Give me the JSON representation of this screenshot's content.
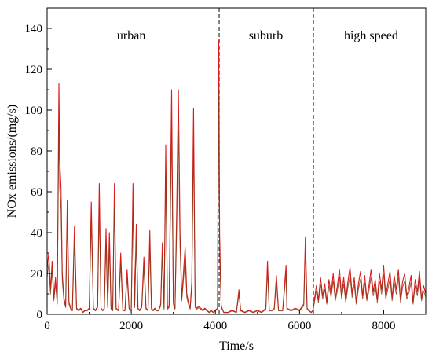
{
  "chart_data": {
    "type": "line",
    "xlabel": "Time/s",
    "ylabel": "NOx emissions/(mg/s)",
    "xlim": [
      0,
      9000
    ],
    "ylim": [
      0,
      150
    ],
    "xticks": [
      0,
      2000,
      4000,
      6000,
      8000
    ],
    "yticks": [
      0,
      20,
      40,
      60,
      80,
      100,
      120,
      140
    ],
    "grid": false,
    "legend": "none",
    "colors": {
      "series_primary": "#d81c1c",
      "series_secondary": "#8b3a1a",
      "divider": "#333333"
    },
    "dividers": [
      4090,
      6330
    ],
    "regions": [
      {
        "label": "urban",
        "x": 2000
      },
      {
        "label": "suburb",
        "x": 5200
      },
      {
        "label": "high speed",
        "x": 7700
      }
    ],
    "series": [
      {
        "points": [
          [
            0,
            22
          ],
          [
            40,
            30
          ],
          [
            80,
            12
          ],
          [
            120,
            26
          ],
          [
            160,
            8
          ],
          [
            200,
            18
          ],
          [
            240,
            6
          ],
          [
            280,
            113
          ],
          [
            300,
            75
          ],
          [
            330,
            62
          ],
          [
            360,
            20
          ],
          [
            400,
            8
          ],
          [
            440,
            4
          ],
          [
            480,
            56
          ],
          [
            520,
            6
          ],
          [
            560,
            3
          ],
          [
            600,
            2
          ],
          [
            650,
            43
          ],
          [
            700,
            3
          ],
          [
            750,
            2
          ],
          [
            800,
            3
          ],
          [
            850,
            1
          ],
          [
            900,
            2
          ],
          [
            950,
            2
          ],
          [
            1000,
            3
          ],
          [
            1050,
            55
          ],
          [
            1100,
            3
          ],
          [
            1150,
            2
          ],
          [
            1200,
            4
          ],
          [
            1240,
            64
          ],
          [
            1280,
            3
          ],
          [
            1320,
            2
          ],
          [
            1360,
            3
          ],
          [
            1400,
            42
          ],
          [
            1440,
            4
          ],
          [
            1480,
            40
          ],
          [
            1520,
            3
          ],
          [
            1560,
            2
          ],
          [
            1600,
            64
          ],
          [
            1640,
            3
          ],
          [
            1700,
            2
          ],
          [
            1750,
            30
          ],
          [
            1800,
            2
          ],
          [
            1850,
            2
          ],
          [
            1900,
            22
          ],
          [
            1950,
            3
          ],
          [
            2000,
            2
          ],
          [
            2040,
            64
          ],
          [
            2080,
            4
          ],
          [
            2120,
            44
          ],
          [
            2160,
            3
          ],
          [
            2200,
            2
          ],
          [
            2250,
            4
          ],
          [
            2300,
            28
          ],
          [
            2350,
            3
          ],
          [
            2400,
            2
          ],
          [
            2440,
            41
          ],
          [
            2480,
            3
          ],
          [
            2520,
            2
          ],
          [
            2560,
            3
          ],
          [
            2600,
            2
          ],
          [
            2650,
            2
          ],
          [
            2700,
            5
          ],
          [
            2740,
            35
          ],
          [
            2780,
            3
          ],
          [
            2820,
            83
          ],
          [
            2860,
            3
          ],
          [
            2900,
            4
          ],
          [
            2960,
            110
          ],
          [
            3000,
            6
          ],
          [
            3040,
            3
          ],
          [
            3080,
            52
          ],
          [
            3120,
            110
          ],
          [
            3160,
            40
          ],
          [
            3200,
            8
          ],
          [
            3240,
            20
          ],
          [
            3280,
            33
          ],
          [
            3320,
            10
          ],
          [
            3360,
            6
          ],
          [
            3400,
            3
          ],
          [
            3440,
            16
          ],
          [
            3480,
            101
          ],
          [
            3520,
            4
          ],
          [
            3560,
            3
          ],
          [
            3600,
            4
          ],
          [
            3650,
            3
          ],
          [
            3700,
            2
          ],
          [
            3750,
            3
          ],
          [
            3800,
            2
          ],
          [
            3850,
            1
          ],
          [
            3900,
            2
          ],
          [
            3950,
            1
          ],
          [
            4000,
            2
          ],
          [
            4050,
            3
          ],
          [
            4080,
            134
          ],
          [
            4100,
            40
          ],
          [
            4120,
            20
          ],
          [
            4140,
            4
          ],
          [
            4200,
            1
          ],
          [
            4300,
            1
          ],
          [
            4400,
            2
          ],
          [
            4500,
            1
          ],
          [
            4560,
            12
          ],
          [
            4600,
            2
          ],
          [
            4700,
            1
          ],
          [
            4800,
            2
          ],
          [
            4900,
            1
          ],
          [
            5000,
            2
          ],
          [
            5100,
            1
          ],
          [
            5200,
            3
          ],
          [
            5240,
            26
          ],
          [
            5280,
            2
          ],
          [
            5350,
            2
          ],
          [
            5400,
            3
          ],
          [
            5450,
            19
          ],
          [
            5500,
            2
          ],
          [
            5600,
            2
          ],
          [
            5680,
            24
          ],
          [
            5700,
            3
          ],
          [
            5800,
            2
          ],
          [
            5900,
            3
          ],
          [
            6000,
            2
          ],
          [
            6100,
            5
          ],
          [
            6140,
            38
          ],
          [
            6180,
            3
          ],
          [
            6220,
            2
          ],
          [
            6280,
            1
          ],
          [
            6320,
            2
          ],
          [
            6360,
            8
          ],
          [
            6400,
            14
          ],
          [
            6450,
            7
          ],
          [
            6500,
            18
          ],
          [
            6550,
            9
          ],
          [
            6600,
            15
          ],
          [
            6650,
            6
          ],
          [
            6700,
            17
          ],
          [
            6750,
            10
          ],
          [
            6800,
            20
          ],
          [
            6850,
            8
          ],
          [
            6900,
            14
          ],
          [
            6950,
            22
          ],
          [
            7000,
            9
          ],
          [
            7050,
            18
          ],
          [
            7100,
            7
          ],
          [
            7150,
            16
          ],
          [
            7200,
            23
          ],
          [
            7250,
            10
          ],
          [
            7300,
            18
          ],
          [
            7350,
            6
          ],
          [
            7400,
            15
          ],
          [
            7450,
            21
          ],
          [
            7500,
            9
          ],
          [
            7550,
            19
          ],
          [
            7600,
            8
          ],
          [
            7650,
            14
          ],
          [
            7700,
            22
          ],
          [
            7750,
            11
          ],
          [
            7800,
            17
          ],
          [
            7850,
            7
          ],
          [
            7900,
            20
          ],
          [
            7950,
            12
          ],
          [
            8000,
            24
          ],
          [
            8050,
            9
          ],
          [
            8100,
            15
          ],
          [
            8150,
            21
          ],
          [
            8200,
            8
          ],
          [
            8250,
            19
          ],
          [
            8300,
            12
          ],
          [
            8350,
            22
          ],
          [
            8400,
            7
          ],
          [
            8450,
            16
          ],
          [
            8500,
            20
          ],
          [
            8550,
            9
          ],
          [
            8600,
            13
          ],
          [
            8650,
            19
          ],
          [
            8700,
            6
          ],
          [
            8750,
            17
          ],
          [
            8800,
            11
          ],
          [
            8850,
            21
          ],
          [
            8900,
            8
          ],
          [
            8950,
            14
          ],
          [
            9000,
            10
          ]
        ]
      }
    ]
  }
}
